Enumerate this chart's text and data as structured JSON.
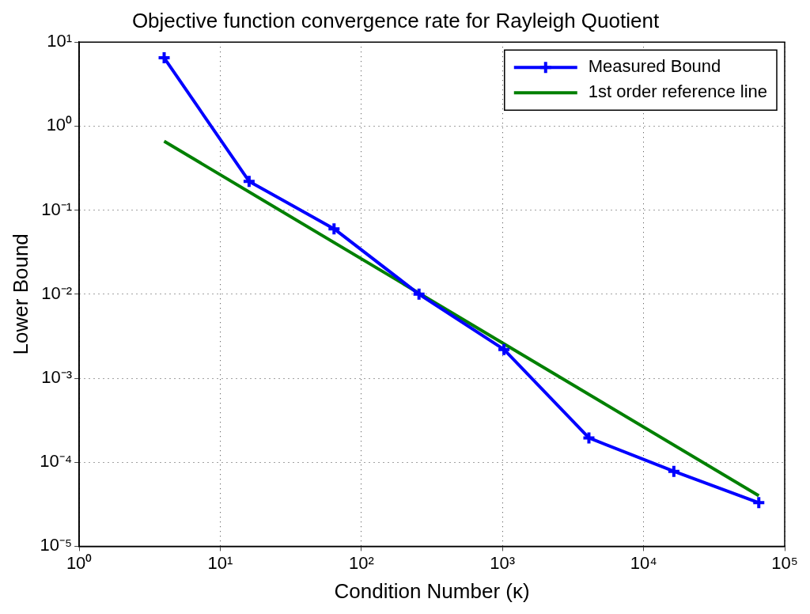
{
  "chart_data": {
    "type": "line",
    "title": "Objective function convergence rate for Rayleigh Quotient",
    "xlabel": "Condition Number (κ)",
    "ylabel": "Lower Bound",
    "log": "xy",
    "grid": true,
    "legend": "top right",
    "line_style": "solid",
    "xlim": [
      1,
      100000
    ],
    "ylim": [
      1e-05,
      10
    ],
    "xticks": [
      {
        "value": 1,
        "label": "10⁰"
      },
      {
        "value": 10,
        "label": "10¹"
      },
      {
        "value": 100,
        "label": "10²"
      },
      {
        "value": 1000,
        "label": "10³"
      },
      {
        "value": 10000,
        "label": "10⁴"
      },
      {
        "value": 100000,
        "label": "10⁵"
      }
    ],
    "yticks": [
      {
        "value": 1e-05,
        "label": "10⁻⁵"
      },
      {
        "value": 0.0001,
        "label": "10⁻⁴"
      },
      {
        "value": 0.001,
        "label": "10⁻³"
      },
      {
        "value": 0.01,
        "label": "10⁻²"
      },
      {
        "value": 0.1,
        "label": "10⁻¹"
      },
      {
        "value": 1,
        "label": "10⁰"
      },
      {
        "value": 10,
        "label": "10¹"
      }
    ],
    "series": [
      {
        "name": "Measured Bound",
        "color": "#0000ff",
        "marker": "cross",
        "x": [
          4,
          16,
          64,
          256,
          1024,
          4096,
          16384,
          65536
        ],
        "values": [
          6.5,
          0.22,
          0.06,
          0.01,
          0.0022,
          0.000195,
          7.8e-05,
          3.3e-05
        ]
      },
      {
        "name": "1st order reference line",
        "color": "#008000",
        "marker": "none",
        "x": [
          4,
          65536
        ],
        "values": [
          0.66,
          4e-05
        ]
      }
    ]
  }
}
